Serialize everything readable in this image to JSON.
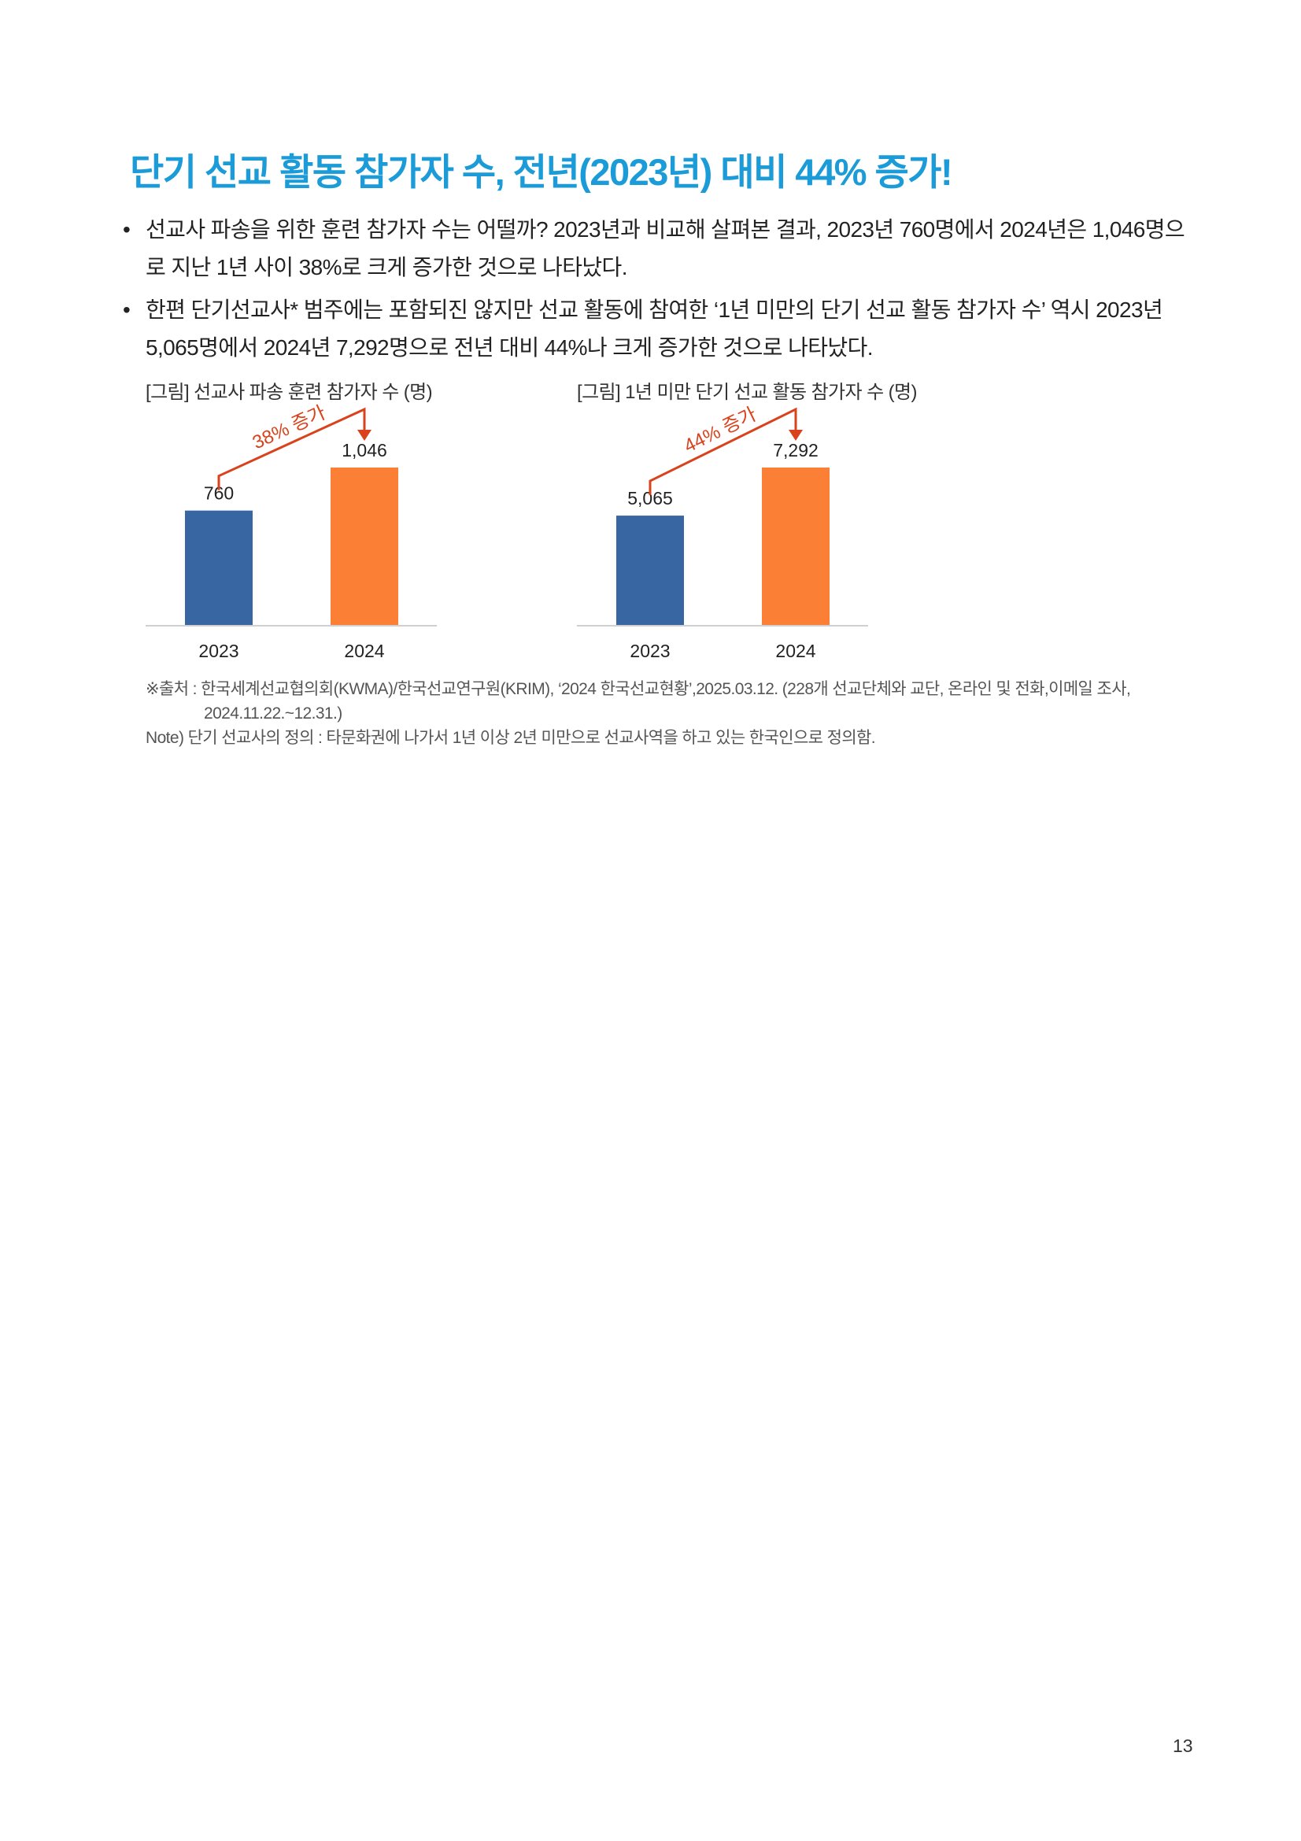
{
  "heading": "단기 선교 활동 참가자 수, 전년(2023년) 대비 44% 증가!",
  "bullet_symbol": "•",
  "bullets": [
    "선교사 파송을 위한 훈련 참가자 수는 어떨까? 2023년과 비교해 살펴본 결과, 2023년 760명에서 2024년은 1,046명으로 지난 1년 사이 38%로 크게 증가한 것으로 나타났다.",
    "한편 단기선교사* 범주에는 포함되진 않지만 선교 활동에 참여한 ‘1년 미만의 단기 선교 활동 참가자 수’ 역시 2023년 5,065명에서 2024년 7,292명으로 전년 대비 44%나 크게 증가한 것으로 나타났다."
  ],
  "figures": [
    {
      "caption": "[그림] 선교사 파송 훈련 참가자 수 (명)",
      "growth_label": "38% 증가",
      "value_labels": [
        "760",
        "1,046"
      ]
    },
    {
      "caption": "[그림] 1년 미만 단기 선교 활동 참가자 수 (명)",
      "growth_label": "44% 증가",
      "value_labels": [
        "5,065",
        "7,292"
      ]
    }
  ],
  "chart_data": [
    {
      "type": "bar",
      "title": "[그림] 선교사 파송 훈련 참가자 수 (명)",
      "categories": [
        "2023",
        "2024"
      ],
      "values": [
        760,
        1046
      ],
      "bar_colors": [
        "#3866a3",
        "#fb7f34"
      ],
      "annotation": "38% 증가"
    },
    {
      "type": "bar",
      "title": "[그림] 1년 미만 단기 선교 활동 참가자 수 (명)",
      "categories": [
        "2023",
        "2024"
      ],
      "values": [
        5065,
        7292
      ],
      "bar_colors": [
        "#3866a3",
        "#fb7f34"
      ],
      "annotation": "44% 증가"
    }
  ],
  "notes": {
    "source_line1": "※출처 : 한국세계선교협의회(KWMA)/한국선교연구원(KRIM), ‘2024 한국선교현황’,2025.03.12. (228개 선교단체와 교단, 온라인 및 전화,이메일 조사,",
    "source_line2": "2024.11.22.~12.31.)",
    "definition": "Note) 단기 선교사의 정의 : 타문화권에 나가서 1년 이상 2년 미만으로 선교사역을 하고 있는 한국인으로 정의함."
  },
  "page_number": "13",
  "colors": {
    "heading": "#1b9bd7",
    "bar_2023": "#3866a3",
    "bar_2024": "#fb7f34",
    "annotation": "#d9421b"
  }
}
